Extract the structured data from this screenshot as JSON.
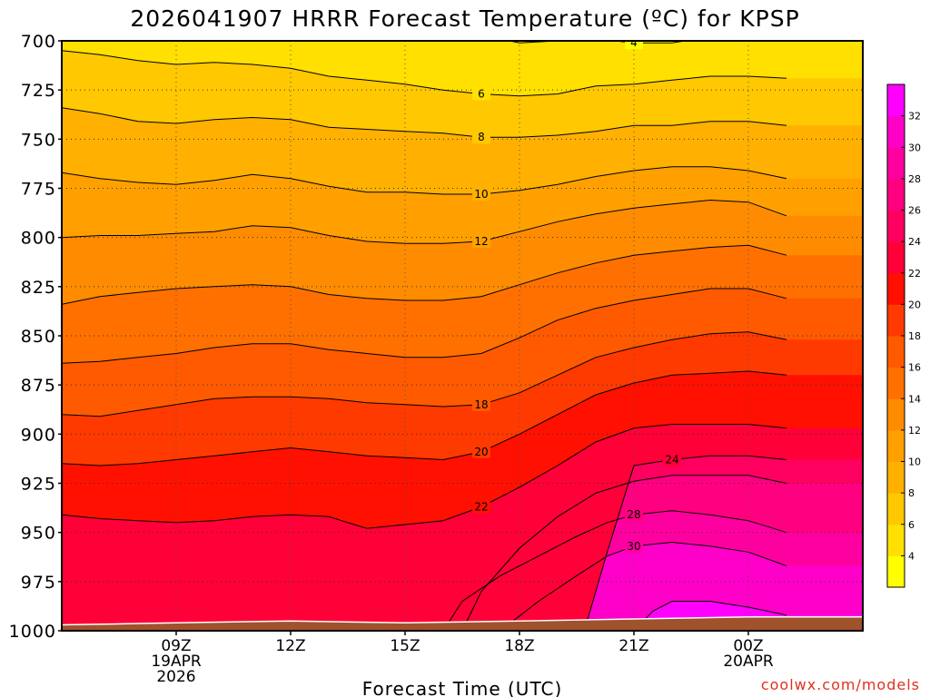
{
  "chart_data": {
    "type": "heatmap",
    "title": "2026041907 HRRR Forecast Temperature (ºC) for KPSP",
    "xlabel": "Forecast Time (UTC)",
    "ylabel": "",
    "credit": "coolwx.com/models",
    "y_axis": {
      "ticks": [
        700,
        725,
        750,
        775,
        800,
        825,
        850,
        875,
        900,
        925,
        950,
        975,
        1000
      ],
      "range": [
        700,
        1000
      ],
      "unit": "hPa"
    },
    "x_axis": {
      "range_hours": [
        6,
        27
      ],
      "ticks": [
        {
          "hour": 9,
          "lines": [
            "09Z",
            "19APR",
            "2026"
          ]
        },
        {
          "hour": 12,
          "lines": [
            "12Z"
          ]
        },
        {
          "hour": 15,
          "lines": [
            "15Z"
          ]
        },
        {
          "hour": 18,
          "lines": [
            "18Z"
          ]
        },
        {
          "hour": 21,
          "lines": [
            "21Z"
          ]
        },
        {
          "hour": 24,
          "lines": [
            "00Z",
            "20APR"
          ]
        }
      ]
    },
    "grid": true,
    "colorbar": {
      "labels": [
        4,
        6,
        8,
        10,
        12,
        14,
        16,
        18,
        20,
        22,
        24,
        26,
        28,
        30,
        32
      ],
      "colors": [
        "#ffff00",
        "#ffe000",
        "#ffc800",
        "#ffb000",
        "#ffa000",
        "#ff8c00",
        "#ff7000",
        "#ff5a00",
        "#ff3a00",
        "#ff1000",
        "#ff0038",
        "#ff0060",
        "#ff0080",
        "#ff00a0",
        "#ff00c8",
        "#ff00ff"
      ]
    },
    "isotherms": [
      {
        "value": 4,
        "label": "4",
        "points": [
          [
            6,
            697
          ],
          [
            11,
            693
          ],
          [
            17,
            697
          ],
          [
            18,
            701
          ],
          [
            20,
            699
          ],
          [
            21,
            701
          ],
          [
            22,
            701
          ],
          [
            23,
            698
          ],
          [
            24,
            699
          ],
          [
            25,
            697
          ]
        ]
      },
      {
        "value": 6,
        "label": "6",
        "points": [
          [
            6,
            705
          ],
          [
            7,
            707
          ],
          [
            8,
            710
          ],
          [
            9,
            712
          ],
          [
            10,
            711
          ],
          [
            11,
            712
          ],
          [
            12,
            714
          ],
          [
            13,
            718
          ],
          [
            14,
            720
          ],
          [
            15,
            722
          ],
          [
            16,
            725
          ],
          [
            17,
            727
          ],
          [
            18,
            728
          ],
          [
            19,
            727
          ],
          [
            20,
            723
          ],
          [
            21,
            722
          ],
          [
            22,
            720
          ],
          [
            23,
            718
          ],
          [
            24,
            718
          ],
          [
            25,
            719
          ]
        ]
      },
      {
        "value": 8,
        "label": "8",
        "points": [
          [
            6,
            734
          ],
          [
            7,
            737
          ],
          [
            8,
            741
          ],
          [
            9,
            742
          ],
          [
            10,
            740
          ],
          [
            11,
            739
          ],
          [
            12,
            740
          ],
          [
            13,
            744
          ],
          [
            14,
            745
          ],
          [
            15,
            746
          ],
          [
            16,
            747
          ],
          [
            17,
            749
          ],
          [
            18,
            749
          ],
          [
            19,
            748
          ],
          [
            20,
            746
          ],
          [
            21,
            743
          ],
          [
            22,
            743
          ],
          [
            23,
            741
          ],
          [
            24,
            741
          ],
          [
            25,
            743
          ]
        ]
      },
      {
        "value": 10,
        "label": "10",
        "points": [
          [
            6,
            767
          ],
          [
            7,
            770
          ],
          [
            8,
            772
          ],
          [
            9,
            773
          ],
          [
            10,
            771
          ],
          [
            11,
            768
          ],
          [
            12,
            770
          ],
          [
            13,
            774
          ],
          [
            14,
            777
          ],
          [
            15,
            777
          ],
          [
            16,
            778
          ],
          [
            17,
            778
          ],
          [
            18,
            776
          ],
          [
            19,
            773
          ],
          [
            20,
            769
          ],
          [
            21,
            766
          ],
          [
            22,
            764
          ],
          [
            23,
            764
          ],
          [
            24,
            766
          ],
          [
            25,
            770
          ]
        ]
      },
      {
        "value": 12,
        "label": "12",
        "points": [
          [
            6,
            800
          ],
          [
            7,
            799
          ],
          [
            8,
            799
          ],
          [
            9,
            798
          ],
          [
            10,
            797
          ],
          [
            11,
            794
          ],
          [
            12,
            795
          ],
          [
            13,
            799
          ],
          [
            14,
            802
          ],
          [
            15,
            803
          ],
          [
            16,
            803
          ],
          [
            17,
            802
          ],
          [
            18,
            797
          ],
          [
            19,
            792
          ],
          [
            20,
            788
          ],
          [
            21,
            785
          ],
          [
            22,
            783
          ],
          [
            23,
            781
          ],
          [
            24,
            782
          ],
          [
            25,
            789
          ]
        ]
      },
      {
        "value": 14,
        "label": "",
        "points": [
          [
            6,
            834
          ],
          [
            7,
            830
          ],
          [
            8,
            828
          ],
          [
            9,
            826
          ],
          [
            10,
            825
          ],
          [
            11,
            824
          ],
          [
            12,
            825
          ],
          [
            13,
            829
          ],
          [
            14,
            831
          ],
          [
            15,
            832
          ],
          [
            16,
            832
          ],
          [
            17,
            830
          ],
          [
            18,
            824
          ],
          [
            19,
            818
          ],
          [
            20,
            813
          ],
          [
            21,
            809
          ],
          [
            22,
            807
          ],
          [
            23,
            805
          ],
          [
            24,
            804
          ],
          [
            25,
            809
          ]
        ]
      },
      {
        "value": 16,
        "label": "",
        "points": [
          [
            6,
            864
          ],
          [
            7,
            863
          ],
          [
            8,
            861
          ],
          [
            9,
            859
          ],
          [
            10,
            856
          ],
          [
            11,
            854
          ],
          [
            12,
            854
          ],
          [
            13,
            857
          ],
          [
            14,
            859
          ],
          [
            15,
            861
          ],
          [
            16,
            861
          ],
          [
            17,
            859
          ],
          [
            18,
            851
          ],
          [
            19,
            842
          ],
          [
            20,
            836
          ],
          [
            21,
            832
          ],
          [
            22,
            829
          ],
          [
            23,
            826
          ],
          [
            24,
            826
          ],
          [
            25,
            831
          ]
        ]
      },
      {
        "value": 18,
        "label": "18",
        "points": [
          [
            6,
            890
          ],
          [
            7,
            891
          ],
          [
            8,
            888
          ],
          [
            9,
            885
          ],
          [
            10,
            882
          ],
          [
            11,
            881
          ],
          [
            12,
            881
          ],
          [
            13,
            882
          ],
          [
            14,
            884
          ],
          [
            15,
            885
          ],
          [
            16,
            886
          ],
          [
            17,
            885
          ],
          [
            18,
            879
          ],
          [
            19,
            870
          ],
          [
            20,
            861
          ],
          [
            21,
            856
          ],
          [
            22,
            852
          ],
          [
            23,
            849
          ],
          [
            24,
            848
          ],
          [
            25,
            852
          ]
        ]
      },
      {
        "value": 20,
        "label": "20",
        "points": [
          [
            6,
            915
          ],
          [
            7,
            916
          ],
          [
            8,
            915
          ],
          [
            9,
            913
          ],
          [
            10,
            911
          ],
          [
            11,
            909
          ],
          [
            12,
            907
          ],
          [
            13,
            909
          ],
          [
            14,
            911
          ],
          [
            15,
            912
          ],
          [
            16,
            913
          ],
          [
            17,
            909
          ],
          [
            18,
            900
          ],
          [
            19,
            890
          ],
          [
            20,
            880
          ],
          [
            21,
            874
          ],
          [
            22,
            870
          ],
          [
            23,
            869
          ],
          [
            24,
            868
          ],
          [
            25,
            870
          ]
        ]
      },
      {
        "value": 22,
        "label": "22",
        "points": [
          [
            6,
            941
          ],
          [
            7,
            943
          ],
          [
            8,
            944
          ],
          [
            9,
            945
          ],
          [
            10,
            944
          ],
          [
            11,
            942
          ],
          [
            12,
            941
          ],
          [
            13,
            942
          ],
          [
            14,
            948
          ],
          [
            15,
            946
          ],
          [
            16,
            944
          ],
          [
            17,
            937
          ],
          [
            18,
            927
          ],
          [
            19,
            916
          ],
          [
            20,
            904
          ],
          [
            21,
            897
          ],
          [
            22,
            895
          ],
          [
            23,
            895
          ],
          [
            24,
            895
          ],
          [
            25,
            897
          ]
        ]
      },
      {
        "value": 24,
        "label": "24",
        "points": [
          [
            19.7,
            1000
          ],
          [
            20.3,
            960
          ],
          [
            21,
            916
          ],
          [
            22,
            913
          ],
          [
            23,
            911
          ],
          [
            24,
            911
          ],
          [
            25,
            913
          ]
        ]
      },
      {
        "value": 26,
        "label": "",
        "points": [
          [
            16.5,
            1000
          ],
          [
            17,
            980
          ],
          [
            18,
            958
          ],
          [
            19,
            942
          ],
          [
            20,
            930
          ],
          [
            21,
            924
          ],
          [
            22,
            921
          ],
          [
            23,
            921
          ],
          [
            24,
            921
          ],
          [
            25,
            925
          ]
        ]
      },
      {
        "value": 28,
        "label": "28",
        "points": [
          [
            16,
            1000
          ],
          [
            16.5,
            985
          ],
          [
            17.5,
            972
          ],
          [
            18.5,
            962
          ],
          [
            19.5,
            952
          ],
          [
            20.3,
            945
          ],
          [
            21,
            941
          ],
          [
            22,
            939
          ],
          [
            23,
            941
          ],
          [
            24,
            944
          ],
          [
            25,
            950
          ]
        ]
      },
      {
        "value": 30,
        "label": "30",
        "points": [
          [
            17.5,
            1000
          ],
          [
            18.5,
            985
          ],
          [
            19.5,
            972
          ],
          [
            20.3,
            962
          ],
          [
            21,
            957
          ],
          [
            22,
            955
          ],
          [
            23,
            957
          ],
          [
            24,
            960
          ],
          [
            25,
            967
          ]
        ]
      },
      {
        "value": 32,
        "label": "",
        "points": [
          [
            21,
            1000
          ],
          [
            21.5,
            990
          ],
          [
            22,
            985
          ],
          [
            23,
            985
          ],
          [
            24,
            988
          ],
          [
            25,
            992
          ]
        ]
      }
    ],
    "surface_pressure": [
      [
        6,
        997
      ],
      [
        9,
        996
      ],
      [
        12,
        995
      ],
      [
        15,
        996
      ],
      [
        18,
        995
      ],
      [
        21,
        994
      ],
      [
        24,
        993
      ],
      [
        27,
        993
      ]
    ]
  }
}
